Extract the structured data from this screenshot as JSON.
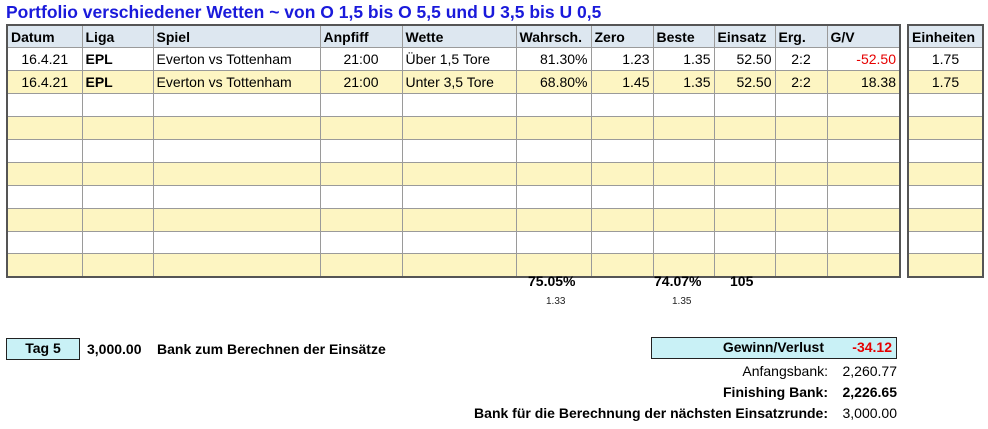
{
  "title": "Portfolio verschiedener Wetten ~ von O 1,5 bis O 5,5 und U 3,5 bis U 0,5",
  "main_table": {
    "headers": [
      "Datum",
      "Liga",
      "Spiel",
      "Anpfiff",
      "Wette",
      "Wahrsch.",
      "Zero",
      "Beste",
      "Einsatz",
      "Erg.",
      "G/V"
    ],
    "rows": [
      [
        "16.4.21",
        "EPL",
        "Everton vs Tottenham",
        "21:00",
        "Über 1,5 Tore",
        "81.30%",
        "1.23",
        "1.35",
        "52.50",
        "2:2",
        "-52.50"
      ],
      [
        "16.4.21",
        "EPL",
        "Everton vs Tottenham",
        "21:00",
        "Unter 3,5 Tore",
        "68.80%",
        "1.45",
        "1.35",
        "52.50",
        "2:2",
        "18.38"
      ]
    ],
    "empty_rows": 8
  },
  "side_table": {
    "header": "Einheiten",
    "rows": [
      "1.75",
      "1.75"
    ]
  },
  "summary": {
    "avg_prob": "75.05%",
    "avg_prob_odds": "1.33",
    "best_prob": "74.07%",
    "best_odds": "1.35",
    "total_stake": "105"
  },
  "footer": {
    "day_label": "Tag 5",
    "bank_value": "3,000.00",
    "bank_label": "Bank zum Berechnen der Einsätze",
    "gv_label": "Gewinn/Verlust",
    "gv_value": "-34.12",
    "start_label": "Anfangsbank:",
    "start_value": "2,260.77",
    "finish_label": "Finishing Bank:",
    "finish_value": "2,226.65",
    "next_label": "Bank für die Berechnung der nächsten Einsatzrunde:",
    "next_value": "3,000.00"
  },
  "colors": {
    "title": "#1a1adb",
    "header_bg": "#dde7f0",
    "alt_row": "#fdf5c2",
    "highlight_box": "#c9f1f6",
    "negative": "#e60000"
  }
}
